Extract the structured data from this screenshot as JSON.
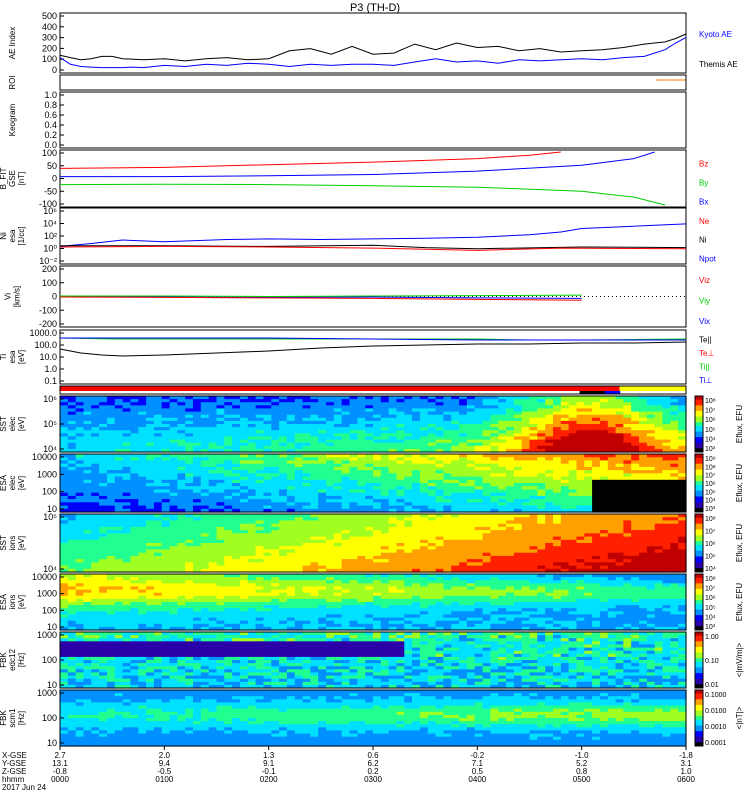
{
  "title": "P3 (TH-D)",
  "colors": {
    "red": "#ff0000",
    "green": "#00cc00",
    "blue": "#0000ff",
    "black": "#000000",
    "orange": "#ff8000",
    "cmap": [
      "#000000",
      "#2b00a8",
      "#0000ff",
      "#0090ff",
      "#00e0ff",
      "#20ff90",
      "#a0ff20",
      "#ffff00",
      "#ffa000",
      "#ff2000",
      "#c00000"
    ]
  },
  "chart_data": [
    {
      "id": "ae",
      "type": "line",
      "ylabel": "AE Index",
      "ylim": [
        0,
        500
      ],
      "yticks": [
        "500",
        "400",
        "300",
        "200",
        "100",
        "0"
      ],
      "legend": [
        {
          "name": "Kyoto AE",
          "color": "#0000ff"
        },
        {
          "name": "Themis AE",
          "color": "#000000"
        }
      ],
      "series": [
        {
          "name": "Kyoto AE",
          "color": "#0000ff",
          "x": [
            0,
            0.1,
            0.2,
            0.3,
            0.4,
            0.5,
            0.6,
            0.7,
            0.8,
            0.9,
            1.0,
            1.2,
            1.4,
            1.6,
            1.8,
            2.0,
            2.2,
            2.4,
            2.6,
            2.8,
            3.0,
            3.2,
            3.4,
            3.6,
            3.8,
            4.0,
            4.2,
            4.4,
            4.6,
            4.8,
            5.0,
            5.2,
            5.4,
            5.6,
            5.8,
            5.9,
            6.0
          ],
          "y": [
            120,
            60,
            40,
            35,
            30,
            30,
            30,
            35,
            30,
            40,
            50,
            40,
            60,
            50,
            70,
            60,
            40,
            60,
            50,
            60,
            60,
            50,
            80,
            110,
            80,
            90,
            70,
            100,
            90,
            100,
            110,
            100,
            120,
            130,
            190,
            250,
            300
          ]
        },
        {
          "name": "Themis AE",
          "color": "#000000",
          "x": [
            0,
            0.1,
            0.2,
            0.3,
            0.4,
            0.5,
            0.6,
            0.8,
            1.0,
            1.2,
            1.4,
            1.6,
            1.8,
            2.0,
            2.2,
            2.4,
            2.6,
            2.8,
            3.0,
            3.2,
            3.4,
            3.6,
            3.8,
            4.0,
            4.2,
            4.4,
            4.6,
            4.8,
            5.0,
            5.2,
            5.4,
            5.6,
            5.8,
            5.9,
            6.0
          ],
          "y": [
            140,
            120,
            100,
            110,
            130,
            130,
            110,
            100,
            110,
            90,
            110,
            120,
            100,
            110,
            180,
            200,
            150,
            220,
            150,
            160,
            240,
            190,
            250,
            210,
            220,
            180,
            200,
            170,
            180,
            190,
            210,
            240,
            260,
            290,
            330
          ]
        }
      ]
    },
    {
      "id": "roi",
      "type": "line",
      "ylabel": "ROI",
      "yticks": [],
      "legend": []
    },
    {
      "id": "keogram",
      "type": "line",
      "ylabel": "Keogram",
      "ylim": [
        0,
        1
      ],
      "yticks": [
        "1.0",
        "0.8",
        "0.6",
        "0.4",
        "0.2",
        "0.0"
      ],
      "legend": []
    },
    {
      "id": "bfit",
      "type": "line",
      "ylabel": "B_FIT\nGSE\n[nT]",
      "ylim": [
        -100,
        100
      ],
      "yticks": [
        "100",
        "50",
        "0",
        "-50",
        "-100"
      ],
      "legend": [
        {
          "name": "Bz",
          "color": "#ff0000"
        },
        {
          "name": "By",
          "color": "#00cc00"
        },
        {
          "name": "Bx",
          "color": "#0000ff"
        }
      ],
      "series": [
        {
          "name": "Bz",
          "color": "#ff0000",
          "x": [
            0,
            1,
            2,
            3,
            4,
            4.5,
            4.8
          ],
          "y": [
            38,
            42,
            52,
            62,
            75,
            88,
            100
          ]
        },
        {
          "name": "By",
          "color": "#00cc00",
          "x": [
            0,
            1,
            2,
            3,
            4,
            5,
            5.5,
            5.8
          ],
          "y": [
            -23,
            -22,
            -23,
            -27,
            -33,
            -48,
            -70,
            -100
          ]
        },
        {
          "name": "Bx",
          "color": "#0000ff",
          "x": [
            0,
            1,
            2,
            3,
            4,
            5,
            5.5,
            5.7
          ],
          "y": [
            7,
            7,
            10,
            15,
            28,
            50,
            75,
            100
          ]
        }
      ]
    },
    {
      "id": "ni",
      "type": "line",
      "ylabel": "Ni\nesa\n[1/cc]",
      "ylim": [
        -3,
        6
      ],
      "log": true,
      "yticks": [
        "10⁶",
        "10⁴",
        "10²",
        "10⁰",
        "10⁻²"
      ],
      "legend": [
        {
          "name": "Ne",
          "color": "#ff0000"
        },
        {
          "name": "Ni",
          "color": "#000000"
        },
        {
          "name": "Npot",
          "color": "#0000ff"
        }
      ],
      "series": [
        {
          "name": "Npot",
          "color": "#0000ff",
          "x": [
            0,
            0.3,
            0.6,
            1.0,
            1.6,
            2.0,
            2.5,
            3.0,
            3.5,
            4.0,
            4.5,
            4.8,
            5.0,
            5.5,
            6.0
          ],
          "y": [
            -0.3,
            0.2,
            0.8,
            0.5,
            0.9,
            1.0,
            0.9,
            1.0,
            1.1,
            1.3,
            1.7,
            2.2,
            2.8,
            3.2,
            3.6
          ]
        },
        {
          "name": "Ni",
          "color": "#000000",
          "x": [
            0,
            1,
            2,
            3,
            3.5,
            4,
            5,
            6
          ],
          "y": [
            -0.2,
            -0.2,
            -0.3,
            -0.1,
            -0.5,
            -0.7,
            -0.4,
            -0.5
          ]
        },
        {
          "name": "Ne",
          "color": "#ff0000",
          "x": [
            0,
            1,
            2,
            3,
            3.5,
            4,
            4.8,
            6
          ],
          "y": [
            -0.4,
            -0.3,
            -0.4,
            -0.6,
            -0.8,
            -1.0,
            -0.6,
            -0.7
          ]
        }
      ]
    },
    {
      "id": "vi",
      "type": "line",
      "ylabel": "Vi\n[km/s]",
      "ylim": [
        -300,
        300
      ],
      "yticks": [
        "200",
        "100",
        "0",
        "-100",
        "-200"
      ],
      "legend": [
        {
          "name": "Viz",
          "color": "#ff0000"
        },
        {
          "name": "Viy",
          "color": "#00cc00"
        },
        {
          "name": "Vix",
          "color": "#0000ff"
        }
      ],
      "series": [
        {
          "name": "Vix",
          "color": "#0000ff",
          "x": [
            0,
            1,
            2,
            3,
            4,
            5
          ],
          "y": [
            0,
            -5,
            -10,
            -5,
            -15,
            -20
          ]
        },
        {
          "name": "Viy",
          "color": "#00cc00",
          "x": [
            0,
            1,
            2,
            3,
            4,
            5
          ],
          "y": [
            5,
            5,
            0,
            5,
            10,
            15
          ]
        },
        {
          "name": "Viz",
          "color": "#ff0000",
          "x": [
            0,
            1,
            2,
            3,
            4,
            5
          ],
          "y": [
            -5,
            -10,
            -15,
            -20,
            -30,
            -40
          ]
        }
      ]
    },
    {
      "id": "te",
      "type": "line",
      "ylabel": "Ti\nesa\n[eV]",
      "ylim": [
        -1,
        4
      ],
      "log": true,
      "yticks": [
        "1000.0",
        "100.0",
        "10.0",
        "1.0",
        "0.1"
      ],
      "legend": [
        {
          "name": "Te||",
          "color": "#000000"
        },
        {
          "name": "Te⊥",
          "color": "#ff0000"
        },
        {
          "name": "Ti||",
          "color": "#00cc00"
        },
        {
          "name": "Ti⊥",
          "color": "#0000ff"
        }
      ],
      "series": [
        {
          "name": "Ti||",
          "color": "#00cc00",
          "x": [
            0,
            0.5,
            1,
            2,
            3,
            4,
            4.5,
            5,
            6
          ],
          "y": [
            3.4,
            3.3,
            3.3,
            3.3,
            3.3,
            3.3,
            3.2,
            3.2,
            3.3
          ]
        },
        {
          "name": "Ti⊥",
          "color": "#0000ff",
          "x": [
            0,
            1,
            2,
            3,
            4,
            4.5,
            5,
            6
          ],
          "y": [
            3.4,
            3.4,
            3.4,
            3.3,
            3.2,
            3.2,
            3.2,
            3.2
          ]
        },
        {
          "name": "Te||",
          "color": "#000000",
          "x": [
            0,
            0.2,
            0.4,
            0.6,
            1,
            1.5,
            2,
            2.5,
            3,
            3.5,
            4,
            4.5,
            5,
            5.5,
            6
          ],
          "y": [
            2.3,
            1.9,
            1.7,
            1.6,
            1.7,
            1.9,
            2.1,
            2.4,
            2.6,
            2.7,
            2.8,
            2.8,
            2.9,
            2.9,
            3.0
          ]
        }
      ]
    },
    {
      "id": "region",
      "type": "bar",
      "ylabel": "",
      "yticks": [],
      "legend": []
    },
    {
      "id": "sst_e",
      "type": "heatmap",
      "ylabel": "SST\nelec\n[eV]",
      "yticks": [
        "10⁶",
        "10⁵",
        "10⁴"
      ],
      "cbar": "Eflux, EFU",
      "cticks": [
        "10⁸",
        "10⁷",
        "10⁶",
        "10⁵",
        "10⁴",
        "10³"
      ]
    },
    {
      "id": "esa_e",
      "type": "heatmap",
      "ylabel": "ESA\nelec\n[eV]",
      "yticks": [
        "10000",
        "1000",
        "100",
        "10"
      ],
      "cbar": "Eflux, EFU",
      "cticks": [
        "10⁹",
        "10⁸",
        "10⁷",
        "10⁶",
        "10⁵",
        "10⁴",
        "10³"
      ]
    },
    {
      "id": "sst_i",
      "type": "heatmap",
      "ylabel": "SST\nions\n[eV]",
      "yticks": [
        "10⁵",
        "10⁴"
      ],
      "cbar": "Eflux, EFU",
      "cticks": [
        "10⁸",
        "10⁷",
        "10⁶",
        "10⁵",
        "10⁴"
      ]
    },
    {
      "id": "esa_i",
      "type": "heatmap",
      "ylabel": "ESA\nions\n[eV]",
      "yticks": [
        "10000",
        "1000",
        "100",
        "10"
      ],
      "cbar": "Eflux, EFU",
      "cticks": [
        "10⁸",
        "10⁷",
        "10⁶",
        "10⁵",
        "10⁴",
        "10³"
      ]
    },
    {
      "id": "fbk_e",
      "type": "heatmap",
      "ylabel": "FBK\nedc12\n[Hz]",
      "yticks": [
        "1000",
        "100",
        "10"
      ],
      "cbar": "<|mV/m|>",
      "cticks": [
        "1.00",
        "0.10",
        "0.01"
      ]
    },
    {
      "id": "fbk_b",
      "type": "heatmap",
      "ylabel": "FBK\nscm1\n[Hz]",
      "yticks": [
        "1000",
        "100",
        "10"
      ],
      "cbar": "<|nT|>",
      "cticks": [
        "0.1000",
        "0.0100",
        "0.0010",
        "0.0001"
      ]
    }
  ],
  "x_axis": {
    "row_labels": [
      "X-GSE",
      "Y-GSE",
      "Z-GSE",
      "hhmm",
      "2017 Jun 24"
    ],
    "ticks": [
      {
        "x": 0,
        "vals": [
          "2.7",
          "13.1",
          "-0.8",
          "0000"
        ]
      },
      {
        "x": 1,
        "vals": [
          "2.0",
          "9.4",
          "-0.5",
          "0100"
        ]
      },
      {
        "x": 2,
        "vals": [
          "1.3",
          "9.1",
          "-0.1",
          "0200"
        ]
      },
      {
        "x": 3,
        "vals": [
          "0.6",
          "6.2",
          "0.2",
          "0300"
        ]
      },
      {
        "x": 4,
        "vals": [
          "-0.2",
          "7.1",
          "0.5",
          "0400"
        ]
      },
      {
        "x": 5,
        "vals": [
          "-1.0",
          "5.2",
          "0.8",
          "0500"
        ]
      },
      {
        "x": 6,
        "vals": [
          "-1.8",
          "3.1",
          "1.0",
          "0600"
        ]
      }
    ]
  }
}
